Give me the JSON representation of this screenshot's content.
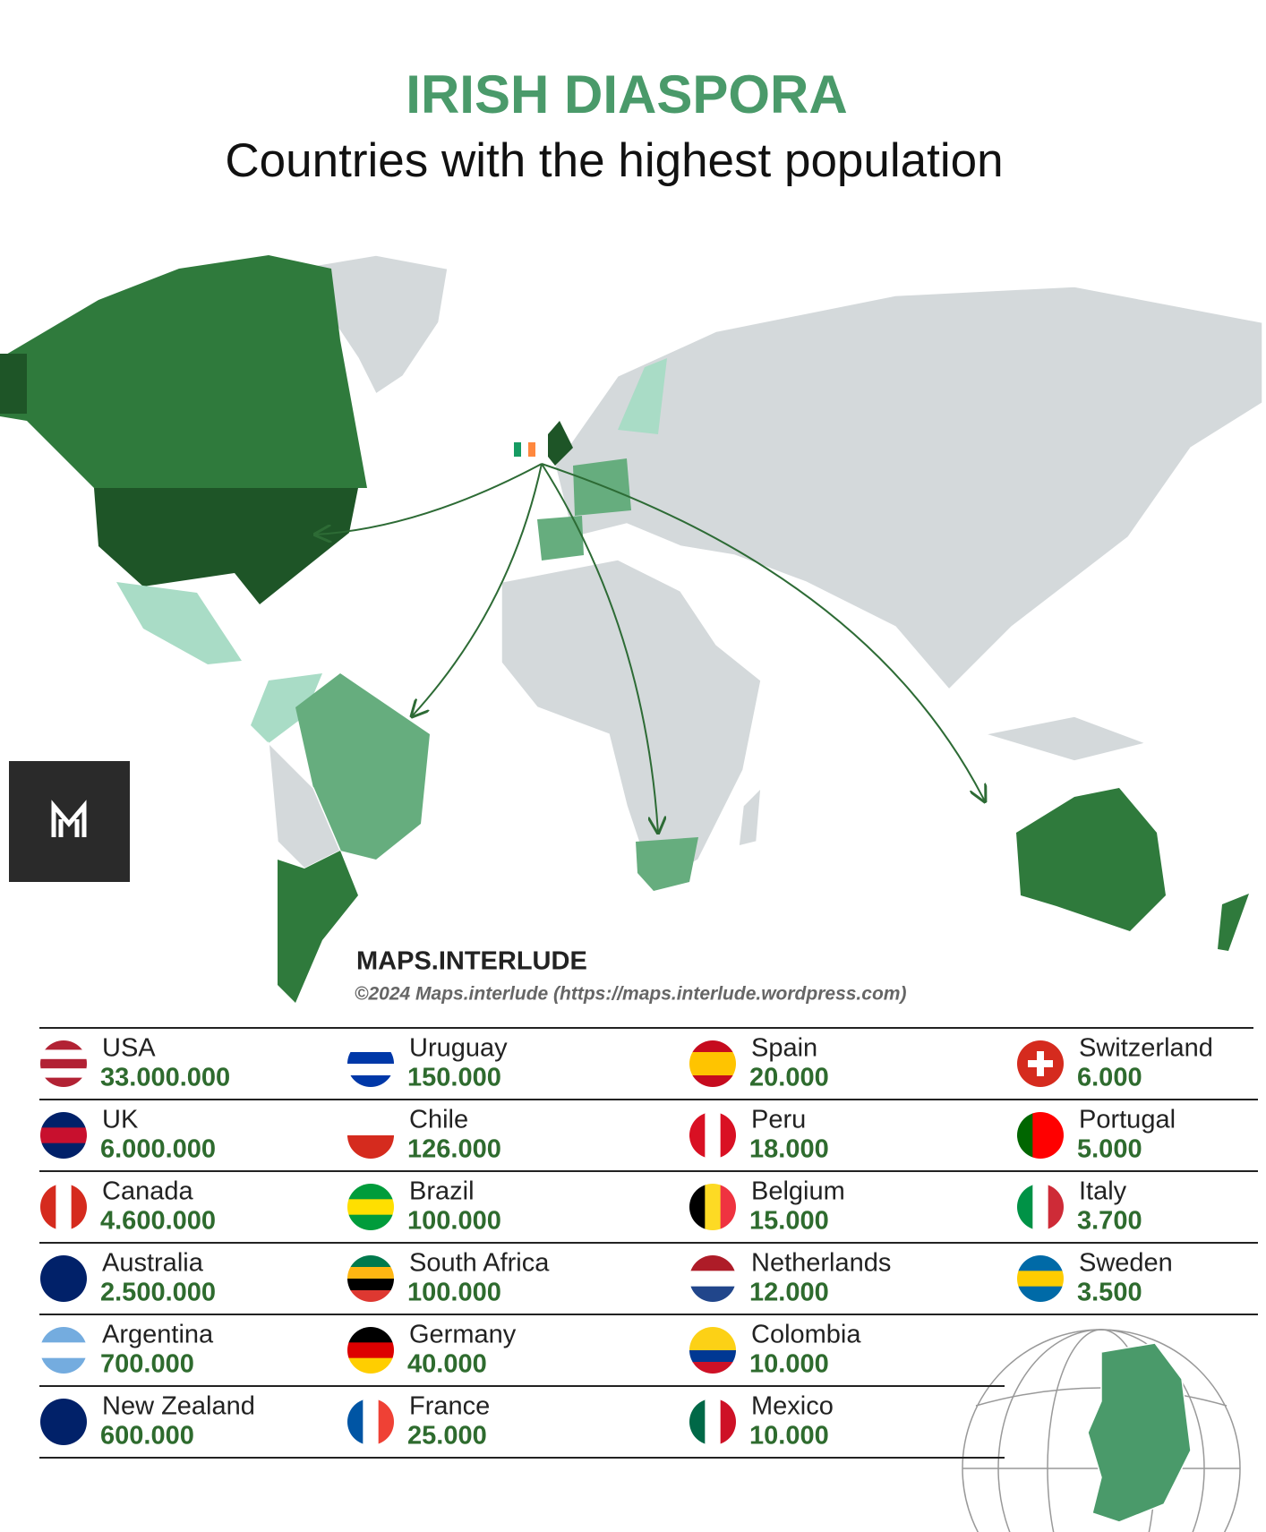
{
  "header": {
    "title": "IRISH DIASPORA",
    "subtitle": "Countries with the highest population"
  },
  "credit": {
    "brand": "MAPS.INTERLUDE",
    "copyright": "©2024 Maps.interlude (https://maps.interlude.wordpress.com)"
  },
  "table": {
    "rows": [
      [
        {
          "country": "USA",
          "population": "33.000.000"
        },
        {
          "country": "Uruguay",
          "population": "150.000"
        },
        {
          "country": "Spain",
          "population": "20.000"
        },
        {
          "country": "Switzerland",
          "population": "6.000"
        }
      ],
      [
        {
          "country": "UK",
          "population": "6.000.000"
        },
        {
          "country": "Chile",
          "population": "126.000"
        },
        {
          "country": "Peru",
          "population": "18.000"
        },
        {
          "country": "Portugal",
          "population": "5.000"
        }
      ],
      [
        {
          "country": "Canada",
          "population": "4.600.000"
        },
        {
          "country": "Brazil",
          "population": "100.000"
        },
        {
          "country": "Belgium",
          "population": "15.000"
        },
        {
          "country": "Italy",
          "population": "3.700"
        }
      ],
      [
        {
          "country": "Australia",
          "population": "2.500.000"
        },
        {
          "country": "South Africa",
          "population": "100.000"
        },
        {
          "country": "Netherlands",
          "population": "12.000"
        },
        {
          "country": "Sweden",
          "population": "3.500"
        }
      ],
      [
        {
          "country": "Argentina",
          "population": "700.000"
        },
        {
          "country": "Germany",
          "population": "40.000"
        },
        {
          "country": "Colombia",
          "population": "10.000"
        }
      ],
      [
        {
          "country": "New Zealand",
          "population": "600.000"
        },
        {
          "country": "France",
          "population": "25.000"
        },
        {
          "country": "Mexico",
          "population": "10.000"
        }
      ]
    ]
  }
}
